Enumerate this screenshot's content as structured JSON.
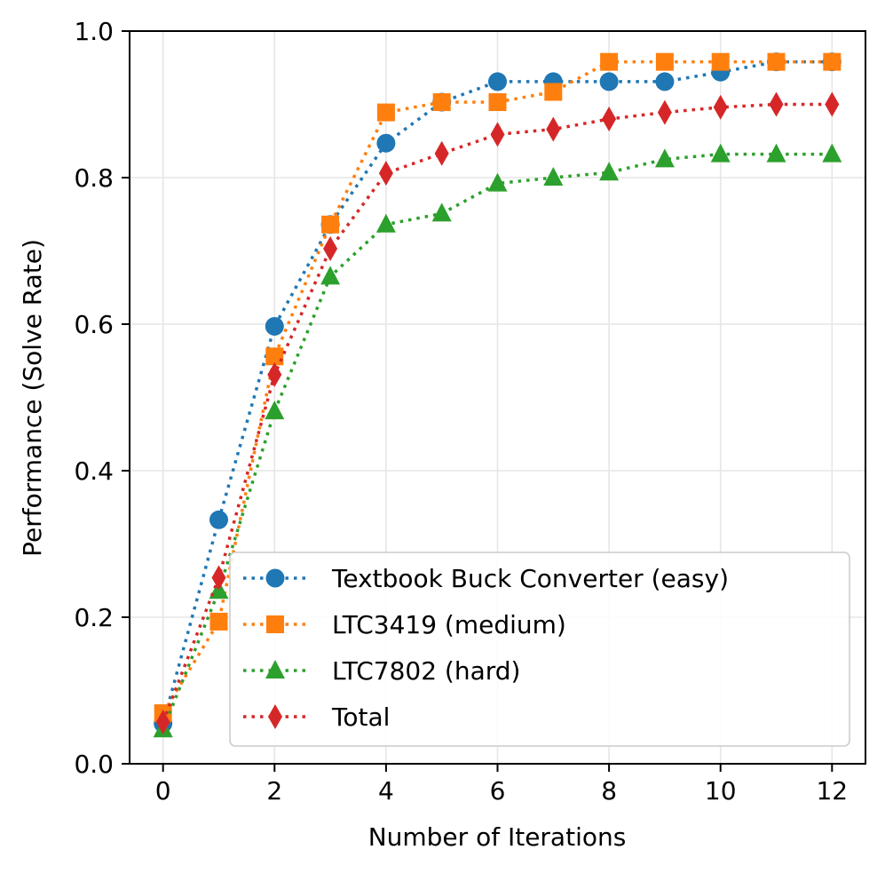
{
  "chart_data": {
    "type": "line",
    "title": "",
    "xlabel": "Number of Iterations",
    "ylabel": "Performance (Solve Rate)",
    "xlim": [
      -0.6,
      12.6
    ],
    "ylim": [
      0.0,
      1.0
    ],
    "xticks": [
      0,
      2,
      4,
      6,
      8,
      10,
      12
    ],
    "xtick_labels": [
      "0",
      "2",
      "4",
      "6",
      "8",
      "10",
      "12"
    ],
    "yticks": [
      0.0,
      0.2,
      0.4,
      0.6,
      0.8,
      1.0
    ],
    "ytick_labels": [
      "0.0",
      "0.2",
      "0.4",
      "0.6",
      "0.8",
      "1.0"
    ],
    "grid": true,
    "legend_position": "lower-right",
    "x": [
      0,
      1,
      2,
      3,
      4,
      5,
      6,
      7,
      8,
      9,
      10,
      11,
      12
    ],
    "series": [
      {
        "name": "Textbook Buck Converter (easy)",
        "color": "#1f77b4",
        "marker": "circle",
        "linestyle": "dotted",
        "values": [
          0.055,
          0.333,
          0.597,
          0.736,
          0.847,
          0.903,
          0.931,
          0.931,
          0.931,
          0.931,
          0.944,
          0.958,
          0.958
        ]
      },
      {
        "name": "LTC3419 (medium)",
        "color": "#ff7f0e",
        "marker": "square",
        "linestyle": "dotted",
        "values": [
          0.069,
          0.194,
          0.556,
          0.736,
          0.889,
          0.903,
          0.903,
          0.917,
          0.958,
          0.958,
          0.958,
          0.958,
          0.958
        ]
      },
      {
        "name": "LTC7802 (hard)",
        "color": "#2ca02c",
        "marker": "triangle",
        "linestyle": "dotted",
        "values": [
          0.047,
          0.236,
          0.481,
          0.665,
          0.736,
          0.751,
          0.792,
          0.8,
          0.807,
          0.825,
          0.832,
          0.832,
          0.832
        ]
      },
      {
        "name": "Total",
        "color": "#d62728",
        "marker": "diamond",
        "linestyle": "dotted",
        "values": [
          0.057,
          0.254,
          0.531,
          0.703,
          0.806,
          0.833,
          0.859,
          0.866,
          0.88,
          0.889,
          0.896,
          0.9,
          0.9
        ]
      }
    ]
  }
}
